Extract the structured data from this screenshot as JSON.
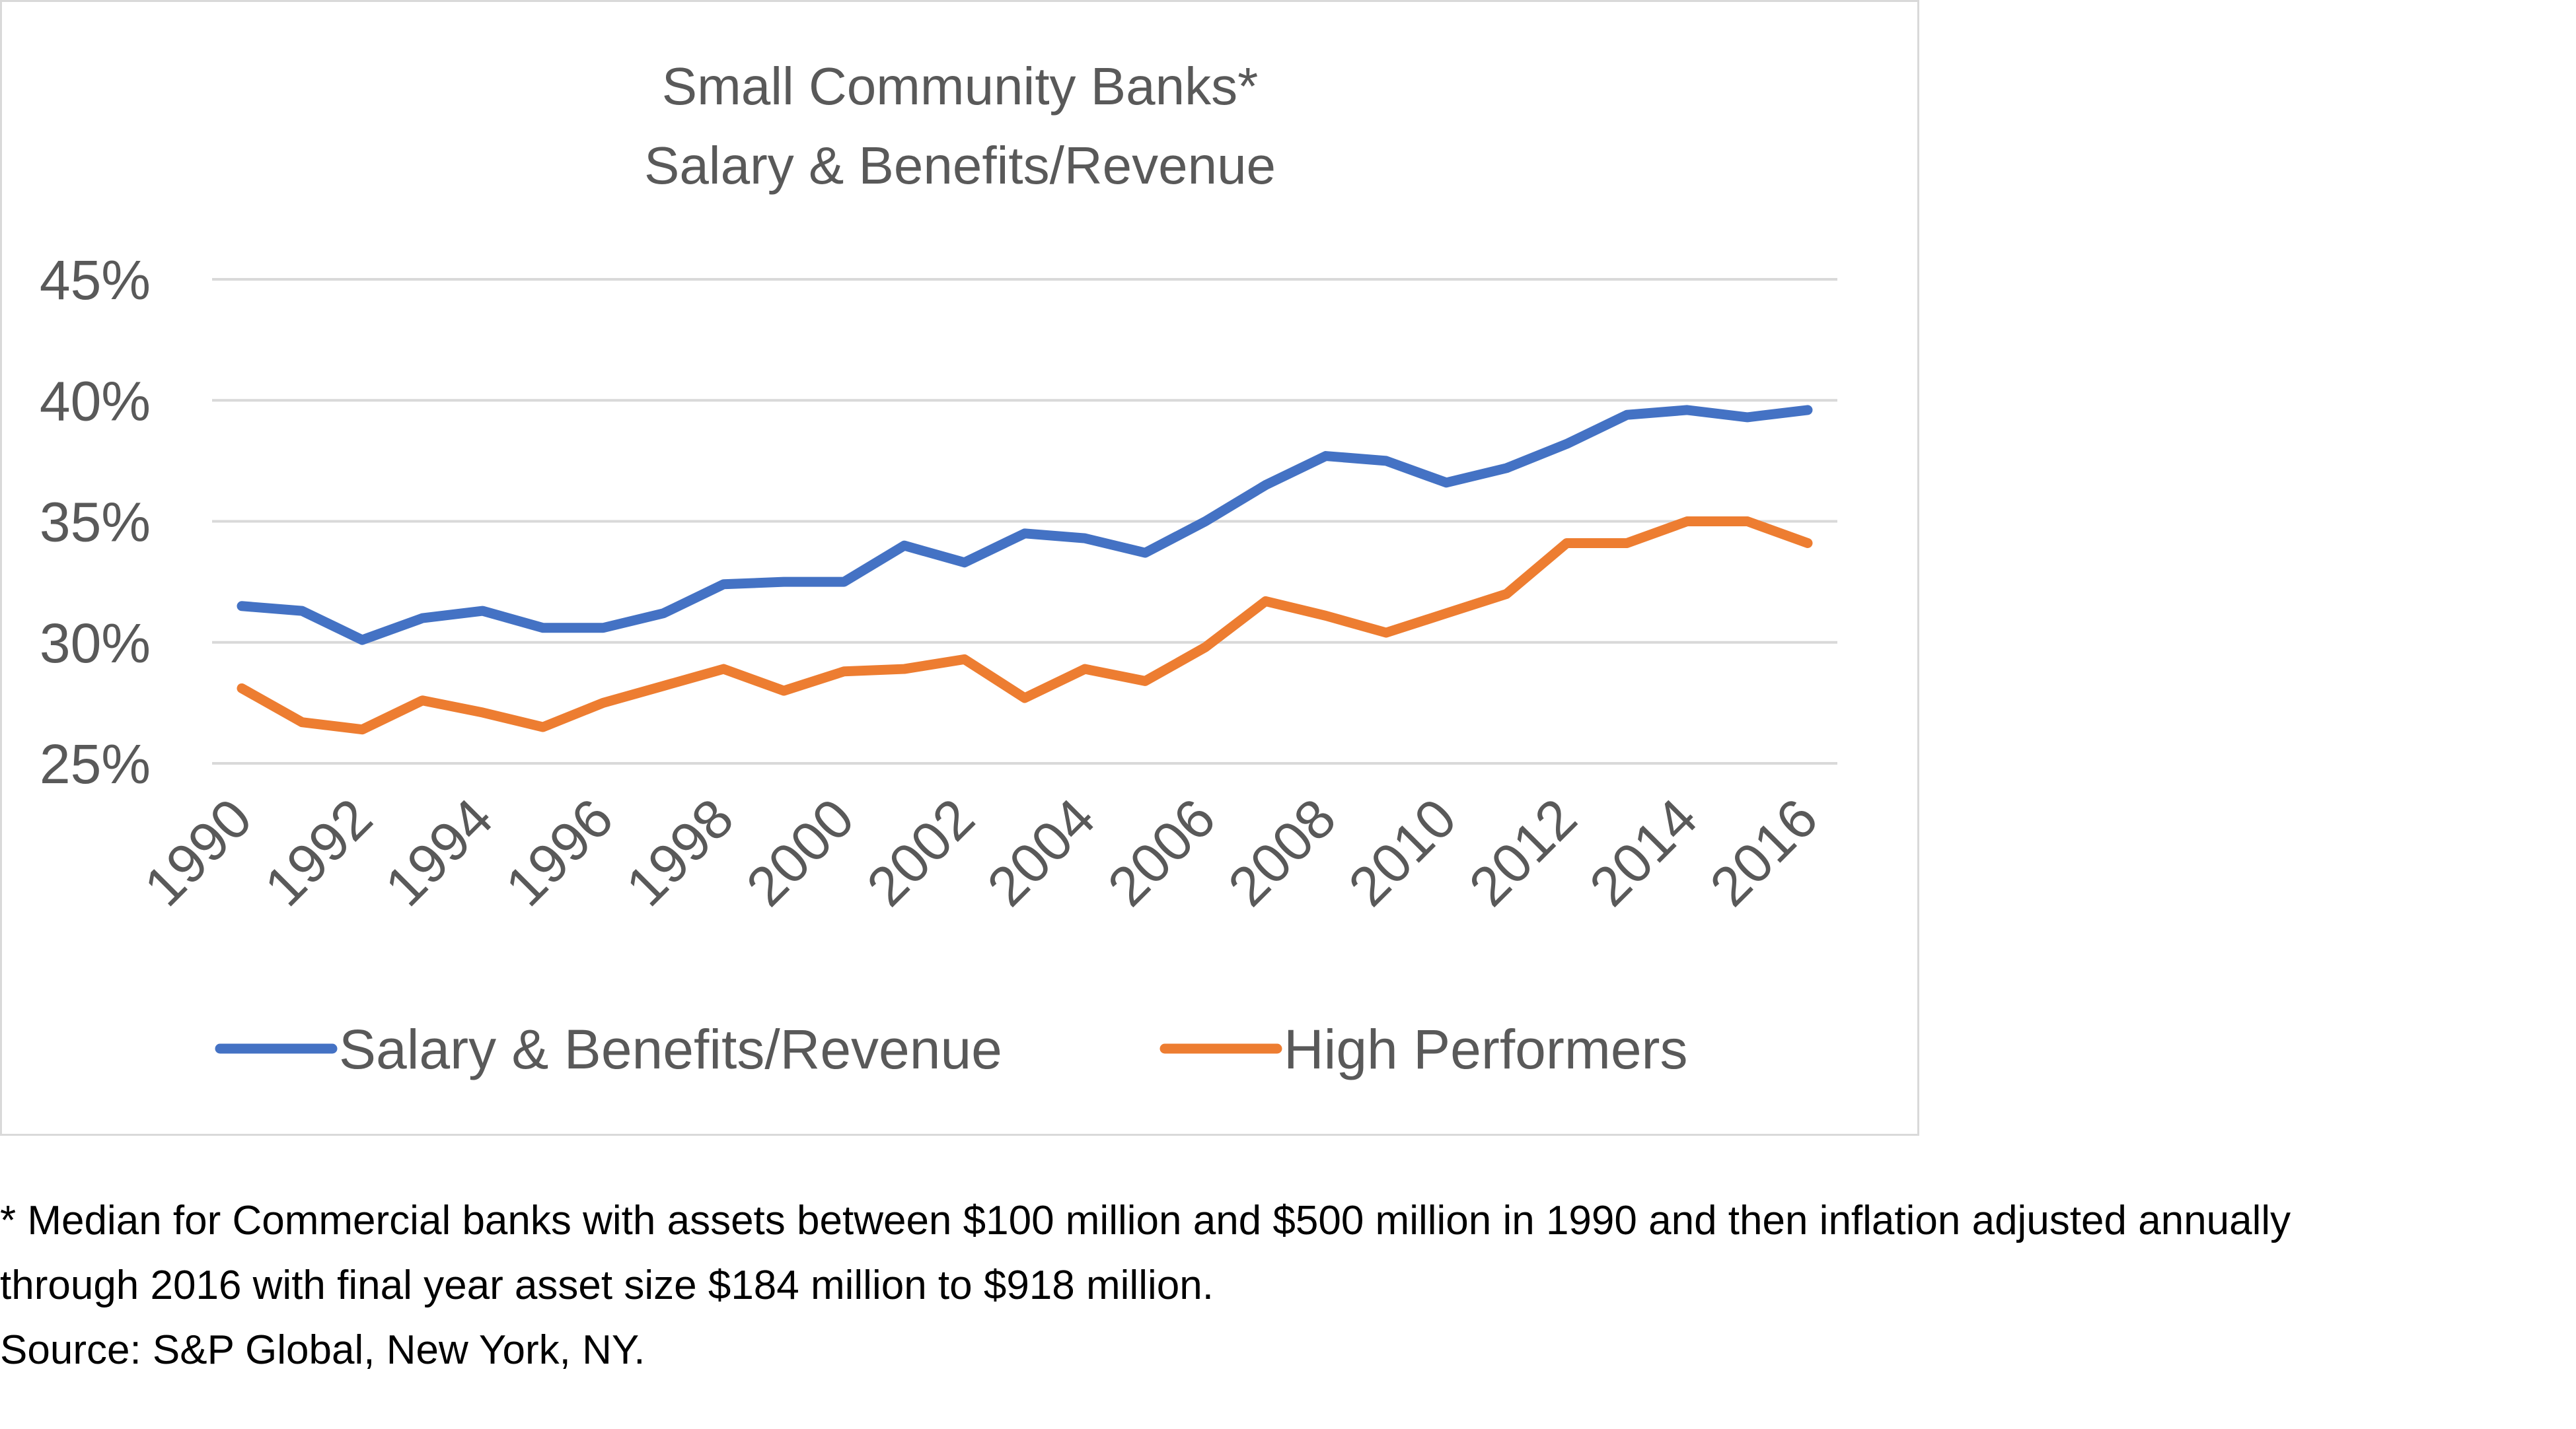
{
  "chart_data": {
    "type": "line",
    "title": [
      "Small Community Banks*",
      "Salary & Benefits/Revenue"
    ],
    "xlabel": "",
    "ylabel": "",
    "x": [
      1990,
      1991,
      1992,
      1993,
      1994,
      1995,
      1996,
      1997,
      1998,
      1999,
      2000,
      2001,
      2002,
      2003,
      2004,
      2005,
      2006,
      2007,
      2008,
      2009,
      2010,
      2011,
      2012,
      2013,
      2014,
      2015,
      2016
    ],
    "x_tick_labels": [
      "1990",
      "1992",
      "1994",
      "1996",
      "1998",
      "2000",
      "2002",
      "2004",
      "2006",
      "2008",
      "2010",
      "2012",
      "2014",
      "2016"
    ],
    "ylim": [
      25,
      45
    ],
    "y_ticks": [
      25,
      30,
      35,
      40,
      45
    ],
    "y_tick_labels": [
      "25%",
      "30%",
      "35%",
      "40%",
      "45%"
    ],
    "grid": true,
    "legend_position": "bottom",
    "series": [
      {
        "name": "Salary & Benefits/Revenue",
        "color": "#4472c4",
        "values": [
          31.5,
          31.3,
          30.1,
          31.0,
          31.3,
          30.6,
          30.6,
          31.2,
          32.4,
          32.5,
          32.5,
          34.0,
          33.3,
          34.5,
          34.3,
          33.7,
          35.0,
          36.5,
          37.7,
          37.5,
          36.6,
          37.2,
          38.2,
          39.4,
          39.6,
          39.3,
          39.6
        ]
      },
      {
        "name": "High Performers",
        "color": "#ed7d31",
        "values": [
          28.1,
          26.7,
          26.4,
          27.6,
          27.1,
          26.5,
          27.5,
          28.2,
          28.9,
          28.0,
          28.8,
          28.9,
          29.3,
          27.7,
          28.9,
          28.4,
          29.8,
          31.7,
          31.1,
          30.4,
          31.2,
          32.0,
          34.1,
          34.1,
          35.0,
          35.0,
          34.1
        ]
      }
    ]
  },
  "footnote": {
    "line1": "* Median for Commercial banks with assets between $100 million and $500 million in 1990 and then inflation adjusted annually",
    "line2": "through 2016 with final year asset size $184 million to $918 million.",
    "line3": "Source: S&P Global, New York, NY."
  }
}
